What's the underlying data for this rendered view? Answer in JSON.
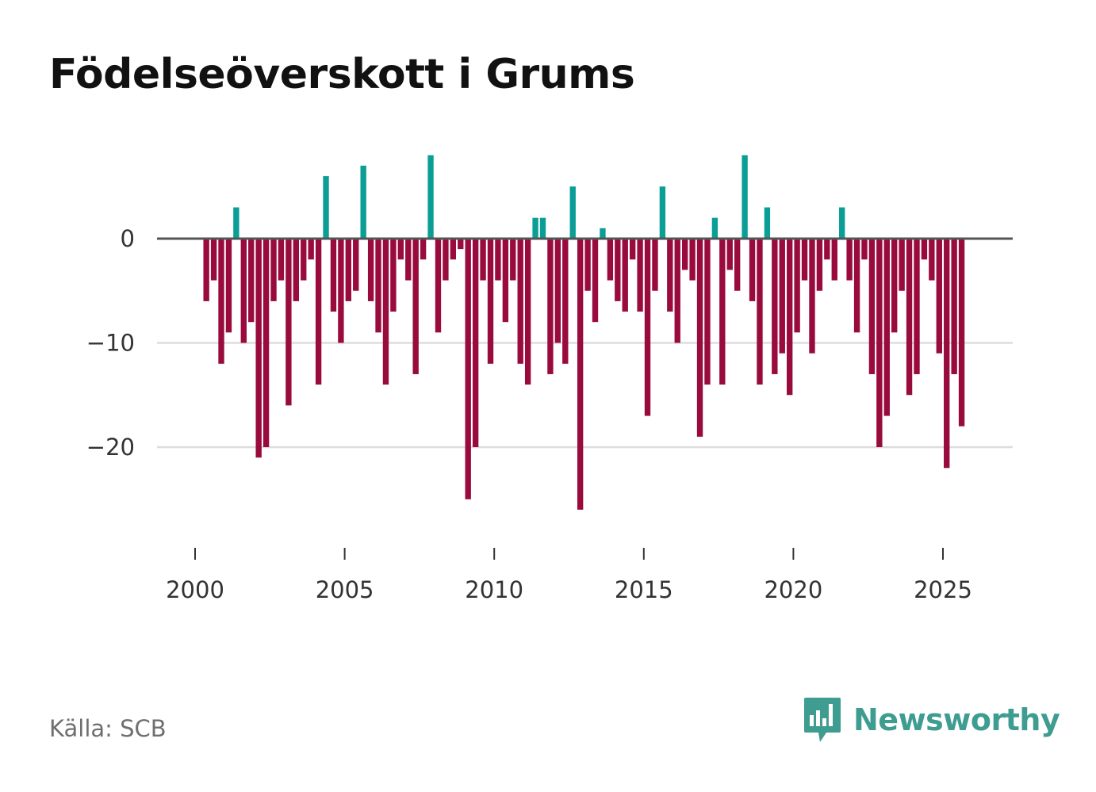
{
  "title": "Födelseöverskott i Grums",
  "source": "Källa: SCB",
  "brand": {
    "name": "Newsworthy",
    "icon": "bar-chart-speech-bubble-icon"
  },
  "colors": {
    "positive": "#0a9e96",
    "negative": "#990a3d",
    "zero_line": "#555555",
    "grid": "#dddddd",
    "brand": "#3e9c90"
  },
  "chart_data": {
    "type": "bar",
    "title": "Födelseöverskott i Grums",
    "xlabel": "",
    "ylabel": "",
    "frequency": "quarterly",
    "start_year": 2000,
    "start_quarter": 2,
    "xlim": [
      1999.55,
      2027.5
    ],
    "ylim": [
      -29,
      8
    ],
    "x_ticks": [
      2000,
      2005,
      2010,
      2015,
      2020,
      2025
    ],
    "x_tick_labels": [
      "2000",
      "2005",
      "2010",
      "2015",
      "2020",
      "2025"
    ],
    "y_ticks": [
      0,
      -10,
      -20
    ],
    "y_tick_labels": [
      "0",
      "−10",
      "−20"
    ],
    "grid": true,
    "values": [
      -6,
      -4,
      -12,
      -9,
      3,
      -10,
      -8,
      -21,
      -20,
      -6,
      -4,
      -16,
      -6,
      -4,
      -2,
      -14,
      6,
      -7,
      -10,
      -6,
      -5,
      7,
      -6,
      -9,
      -14,
      -7,
      -2,
      -4,
      -13,
      -2,
      8,
      -9,
      -4,
      -2,
      -1,
      -25,
      -20,
      -4,
      -12,
      -4,
      -8,
      -4,
      -12,
      -14,
      2,
      2,
      -13,
      -10,
      -12,
      5,
      -26,
      -5,
      -8,
      1,
      -4,
      -6,
      -7,
      -2,
      -7,
      -17,
      -5,
      5,
      -7,
      -10,
      -3,
      -4,
      -19,
      -14,
      2,
      -14,
      -3,
      -5,
      8,
      -6,
      -14,
      3,
      -13,
      -11,
      -15,
      -9,
      -4,
      -11,
      -5,
      -2,
      -4,
      3,
      -4,
      -9,
      -2,
      -13,
      -20,
      -17,
      -9,
      -5,
      -15,
      -13,
      -2,
      -4,
      -11,
      -22,
      -13,
      -18
    ]
  }
}
